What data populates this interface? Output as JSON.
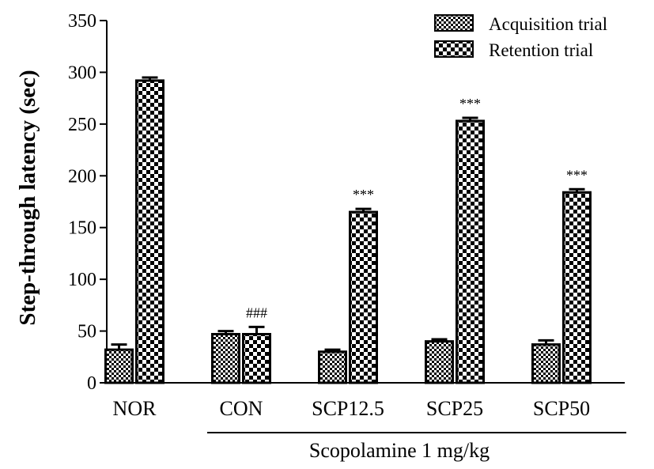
{
  "chart_data": {
    "type": "bar",
    "ylabel": "Step-through latency (sec)",
    "xlabel": "",
    "ylim": [
      0,
      350
    ],
    "yticks": [
      0,
      50,
      100,
      150,
      200,
      250,
      300,
      350
    ],
    "categories": [
      "NOR",
      "CON",
      "SCP12.5",
      "SCP25",
      "SCP50"
    ],
    "series": [
      {
        "name": "Acquisition trial",
        "pattern": "fine-check",
        "values": [
          32,
          47,
          30,
          40,
          37
        ],
        "errors": [
          5,
          3,
          2,
          2,
          4
        ]
      },
      {
        "name": "Retention trial",
        "pattern": "coarse-check",
        "values": [
          292,
          47,
          165,
          253,
          184
        ],
        "errors": [
          3,
          7,
          3,
          3,
          3
        ]
      }
    ],
    "annotations": [
      {
        "category": "CON",
        "series": 1,
        "text": "###"
      },
      {
        "category": "SCP12.5",
        "series": 1,
        "text": "***"
      },
      {
        "category": "SCP25",
        "series": 1,
        "text": "***"
      },
      {
        "category": "SCP50",
        "series": 1,
        "text": "***"
      }
    ],
    "group_bracket": {
      "label": "Scopolamine 1 mg/kg",
      "from": "CON",
      "to": "SCP50"
    },
    "legend": {
      "position": "top-right"
    },
    "grid": false,
    "colors": {
      "fill": "#000000",
      "background": "#ffffff"
    }
  }
}
